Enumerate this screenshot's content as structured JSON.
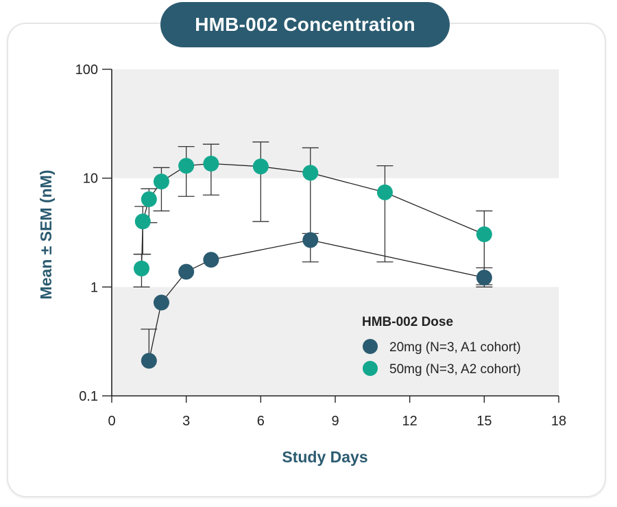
{
  "chart_data": {
    "type": "line",
    "title": "HMB-002 Concentration",
    "xlabel": "Study Days",
    "ylabel": "Mean ± SEM (nM)",
    "xlim": [
      0,
      18
    ],
    "ylim": [
      0.1,
      100
    ],
    "y_scale": "log",
    "x_ticks": [
      "0",
      "3",
      "6",
      "9",
      "12",
      "15",
      "18"
    ],
    "y_ticks": [
      "0.1",
      "1",
      "10",
      "100"
    ],
    "legend": {
      "title": "HMB-002 Dose",
      "placement": "bottom-right"
    },
    "series": [
      {
        "name": "20mg (N=3, A1 cohort)",
        "color": "#2b5b70",
        "x": [
          1.5,
          2,
          3,
          4,
          8,
          15
        ],
        "y": [
          0.21,
          0.72,
          1.38,
          1.78,
          2.7,
          1.22
        ],
        "err_low": [
          null,
          null,
          null,
          null,
          null,
          1.0
        ],
        "err_high": [
          0.41,
          null,
          null,
          null,
          3.1,
          1.5
        ]
      },
      {
        "name": "50mg (N=3, A2 cohort)",
        "color": "#13a88e",
        "x": [
          1.2,
          1.25,
          1.5,
          2,
          3,
          4,
          6,
          8,
          11,
          15
        ],
        "y": [
          1.48,
          4.0,
          6.4,
          9.3,
          13.0,
          13.6,
          12.8,
          11.2,
          7.4,
          3.05
        ],
        "err_low": [
          1.0,
          2.0,
          3.9,
          5.0,
          6.8,
          7.0,
          4.0,
          1.7,
          1.7,
          1.05
        ],
        "err_high": [
          2.0,
          5.5,
          8.0,
          12.5,
          19.5,
          20.5,
          21.5,
          19.0,
          13.0,
          5.0
        ]
      }
    ],
    "bands": "alternating gray per decade",
    "band_color": "#efefef"
  }
}
